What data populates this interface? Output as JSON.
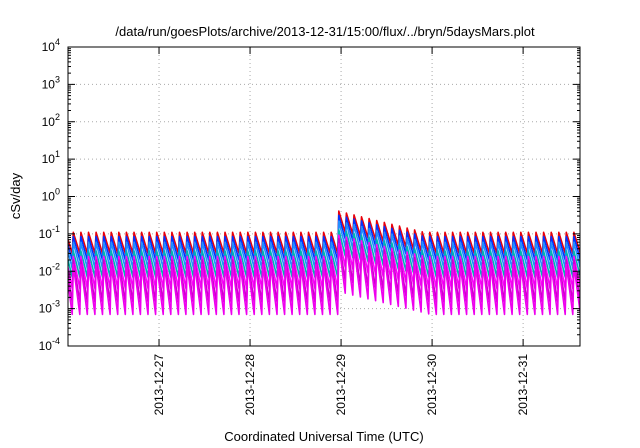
{
  "chart_data": {
    "type": "line",
    "title": "/data/run/goesPlots/archive/2013-12-31/15:00/flux/../bryn/5daysMars.plot",
    "xlabel": "Coordinated Universal Time (UTC)",
    "ylabel": "cSv/day",
    "yscale": "log",
    "ylim": [
      0.0001,
      10000
    ],
    "y_ticks": [
      {
        "base": "10",
        "exp": "-4",
        "value": 0.0001
      },
      {
        "base": "10",
        "exp": "-3",
        "value": 0.001
      },
      {
        "base": "10",
        "exp": "-2",
        "value": 0.01
      },
      {
        "base": "10",
        "exp": "-1",
        "value": 0.1
      },
      {
        "base": "10",
        "exp": "0",
        "value": 1
      },
      {
        "base": "10",
        "exp": "1",
        "value": 10
      },
      {
        "base": "10",
        "exp": "2",
        "value": 100
      },
      {
        "base": "10",
        "exp": "3",
        "value": 1000
      },
      {
        "base": "10",
        "exp": "4",
        "value": 10000
      }
    ],
    "xlim": [
      "2013-12-26 00:00",
      "2013-12-31 15:00"
    ],
    "x_ticks": [
      "2013-12-27",
      "2013-12-28",
      "2013-12-29",
      "2013-12-30",
      "2013-12-31"
    ],
    "grid": true,
    "sawtooth_period_hours": 2,
    "series": [
      {
        "color": "#e8000b",
        "peak": 0.11,
        "trough": 0.03
      },
      {
        "color": "#0033ff",
        "peak": 0.085,
        "trough": 0.02
      },
      {
        "color": "#1f8fff",
        "peak": 0.06,
        "trough": 0.012
      },
      {
        "color": "#00b2b2",
        "peak": 0.035,
        "trough": 0.007
      },
      {
        "color": "#ff00ff",
        "peak": 0.025,
        "trough": 0.0035
      },
      {
        "color": "#cc00cc",
        "peak": 0.02,
        "trough": 0.0015
      },
      {
        "color": "#ee00ee",
        "peak": 0.015,
        "trough": 0.0007
      }
    ],
    "event": {
      "start": "2013-12-28 22:00",
      "end": "2013-12-29 22:00",
      "first_peak": 0.45,
      "ratio_first_peak": 4.0
    }
  }
}
